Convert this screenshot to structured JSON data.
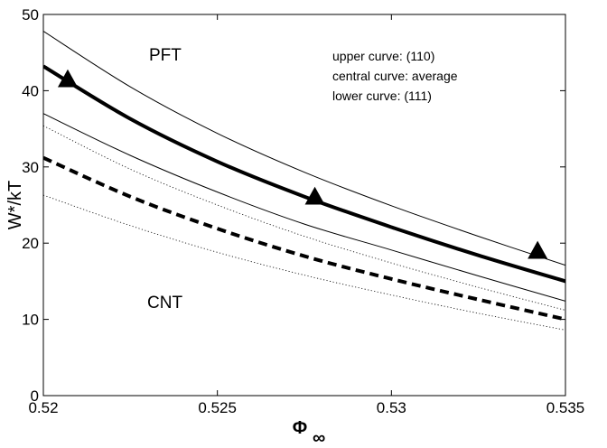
{
  "chart_data": {
    "type": "line",
    "title": "",
    "xlabel": "Φ",
    "xlabel_subscript": "∞",
    "ylabel": "W*/kT",
    "xlim": [
      0.52,
      0.535
    ],
    "ylim": [
      0,
      50
    ],
    "xticks": [
      0.52,
      0.525,
      0.53,
      0.535
    ],
    "xtick_labels": [
      "0.52",
      "0.525",
      "0.53",
      "0.535"
    ],
    "yticks": [
      0,
      10,
      20,
      30,
      40,
      50
    ],
    "ytick_labels": [
      "0",
      "10",
      "20",
      "30",
      "40",
      "50"
    ],
    "grid": false,
    "annotations": {
      "pft": "PFT",
      "cnt": "CNT",
      "note_upper": "upper curve: (110)",
      "note_central": "central curve:  average",
      "note_lower": "lower curve:  (111)"
    },
    "series": [
      {
        "style": "thin-solid",
        "x": [
          0.52,
          0.5225,
          0.525,
          0.5275,
          0.53,
          0.5325,
          0.535
        ],
        "values": [
          47.8,
          40.5,
          34.4,
          29.3,
          24.9,
          20.9,
          17.1
        ]
      },
      {
        "style": "thick-solid",
        "x": [
          0.52,
          0.5225,
          0.525,
          0.5275,
          0.53,
          0.5325,
          0.535
        ],
        "values": [
          43.2,
          36.3,
          30.7,
          26.1,
          22.1,
          18.4,
          15.0
        ]
      },
      {
        "style": "thin-solid",
        "x": [
          0.52,
          0.5225,
          0.525,
          0.5275,
          0.53,
          0.5325,
          0.535
        ],
        "values": [
          37.0,
          31.5,
          26.7,
          22.5,
          19.1,
          15.7,
          12.4
        ]
      },
      {
        "style": "dotted",
        "x": [
          0.52,
          0.5225,
          0.525,
          0.5275,
          0.53,
          0.5325,
          0.535
        ],
        "values": [
          35.4,
          29.7,
          25.0,
          20.9,
          17.4,
          14.2,
          11.2
        ]
      },
      {
        "style": "thick-dashed",
        "x": [
          0.52,
          0.5225,
          0.525,
          0.5275,
          0.53,
          0.5325,
          0.535
        ],
        "values": [
          31.2,
          26.1,
          21.9,
          18.3,
          15.3,
          12.6,
          10.0
        ]
      },
      {
        "style": "dotted",
        "x": [
          0.52,
          0.5225,
          0.525,
          0.5275,
          0.53,
          0.5325,
          0.535
        ],
        "values": [
          26.3,
          22.3,
          18.8,
          15.8,
          13.2,
          10.8,
          8.6
        ]
      },
      {
        "style": "triangle-markers",
        "x": [
          0.5207,
          0.5278,
          0.5342
        ],
        "values": [
          41.5,
          26.1,
          19.0
        ]
      }
    ]
  }
}
